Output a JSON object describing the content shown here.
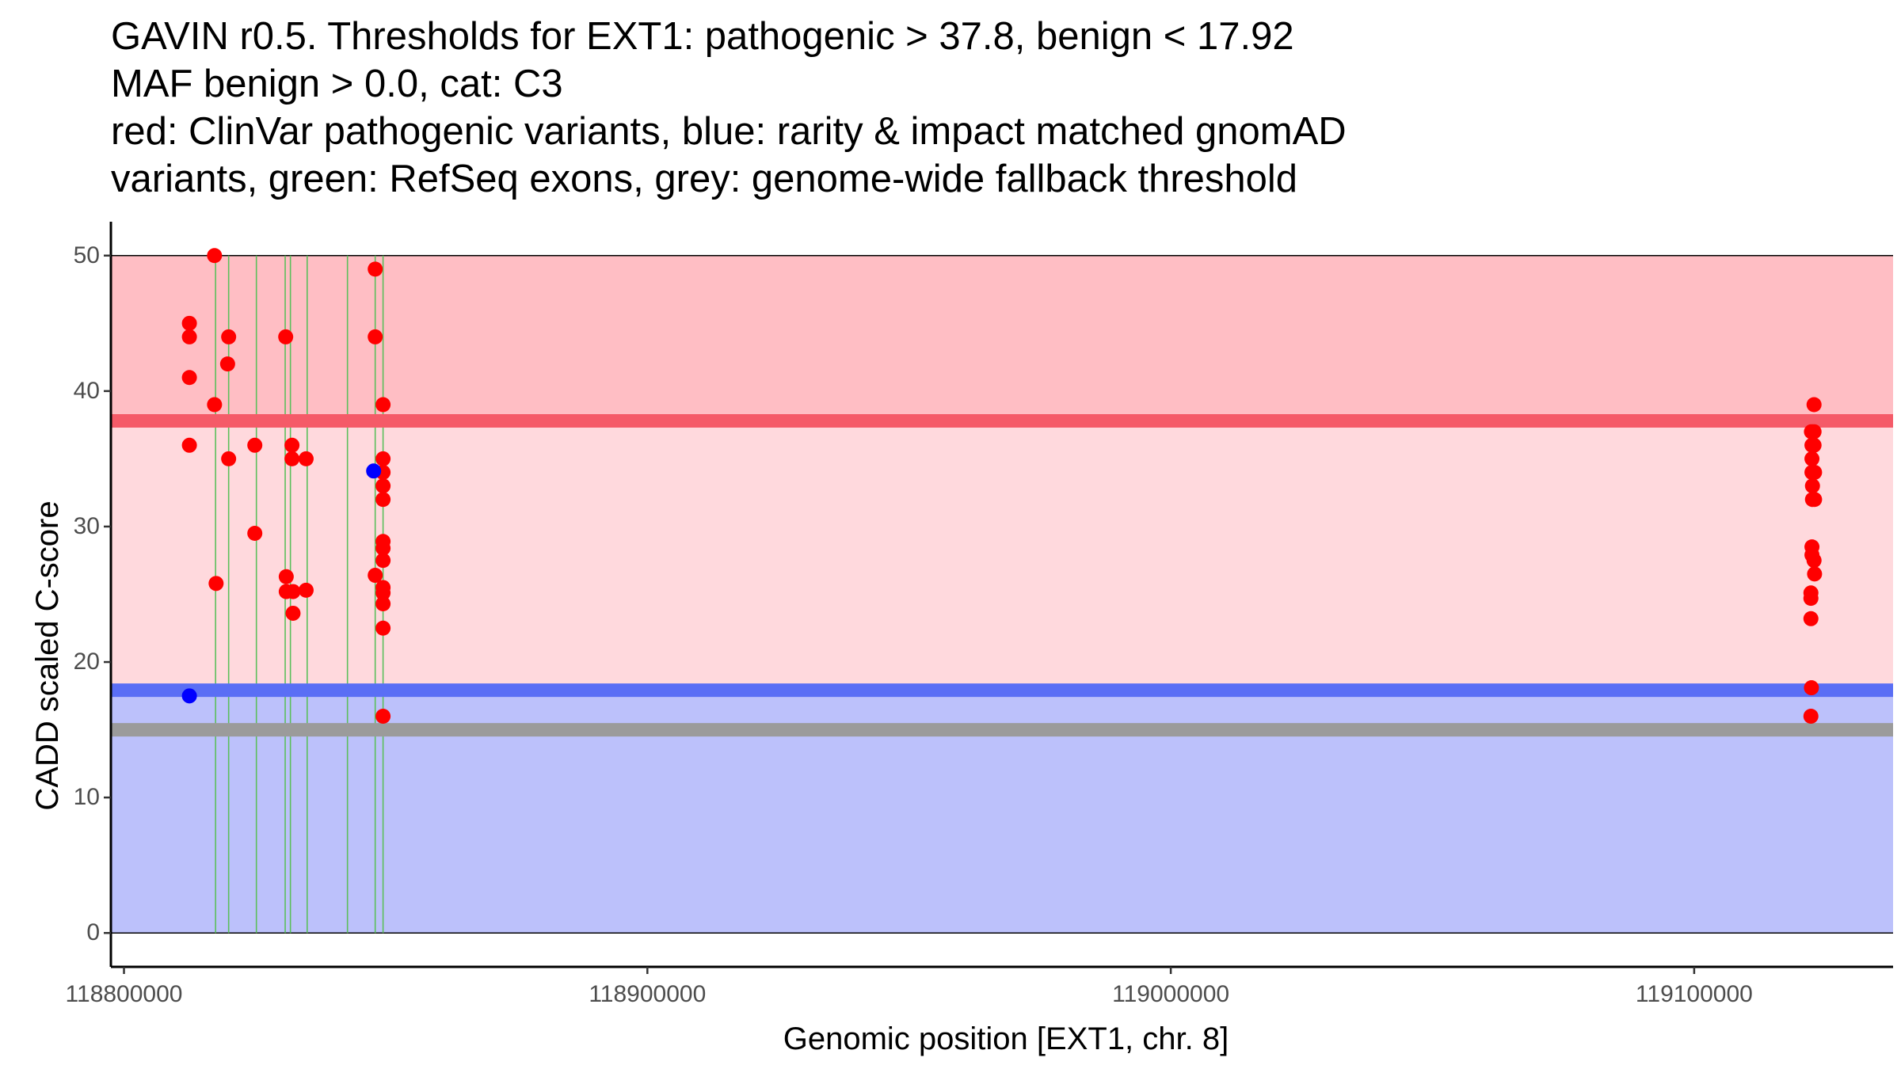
{
  "chart_data": {
    "type": "scatter",
    "title_lines": [
      "GAVIN r0.5. Thresholds for EXT1: pathogenic > 37.8, benign < 17.92",
      "MAF benign > 0.0, cat: C3",
      "red: ClinVar pathogenic variants, blue: rarity & impact matched gnomAD",
      "variants, green: RefSeq exons, grey: genome-wide fallback threshold"
    ],
    "xlabel": "Genomic position [EXT1, chr. 8]",
    "ylabel": "CADD scaled C-score",
    "xlim": [
      118797500,
      119138000
    ],
    "ylim": [
      -2.5,
      52.5
    ],
    "x_ticks": [
      {
        "value": 118800000,
        "label": "118800000"
      },
      {
        "value": 118900000,
        "label": "118900000"
      },
      {
        "value": 119000000,
        "label": "119000000"
      },
      {
        "value": 119100000,
        "label": "119100000"
      }
    ],
    "y_ticks": [
      {
        "value": 0,
        "label": "0"
      },
      {
        "value": 10,
        "label": "10"
      },
      {
        "value": 20,
        "label": "20"
      },
      {
        "value": 30,
        "label": "30"
      },
      {
        "value": 40,
        "label": "40"
      },
      {
        "value": 50,
        "label": "50"
      }
    ],
    "regions": {
      "pathogenic_top": {
        "y0": 37.8,
        "y1": 50,
        "color": "#ffbec4"
      },
      "vus_middle": {
        "y0": 17.92,
        "y1": 37.8,
        "color": "#ffd9dd"
      },
      "benign_bottom": {
        "y0": 0,
        "y1": 17.92,
        "color": "#bcc1fb"
      }
    },
    "threshold_lines": [
      {
        "name": "pathogenic",
        "y": 37.8,
        "color": "#f55a68"
      },
      {
        "name": "benign",
        "y": 17.92,
        "color": "#5a6ef5"
      },
      {
        "name": "fallback",
        "y": 15.0,
        "color": "#9b9b9b"
      }
    ],
    "exons_x": [
      118817500,
      118820000,
      118825300,
      118830800,
      118831800,
      118835000,
      118842700,
      118848000,
      118849500
    ],
    "series": [
      {
        "name": "ClinVar pathogenic",
        "color": "#ff0000",
        "points": [
          [
            118812500,
            45
          ],
          [
            118812500,
            44
          ],
          [
            118812500,
            41
          ],
          [
            118812500,
            36
          ],
          [
            118817300,
            50
          ],
          [
            118817300,
            39
          ],
          [
            118817600,
            25.8
          ],
          [
            118820000,
            44
          ],
          [
            118819800,
            42
          ],
          [
            118820000,
            35
          ],
          [
            118825000,
            36
          ],
          [
            118825000,
            29.5
          ],
          [
            118830900,
            44
          ],
          [
            118831000,
            26.3
          ],
          [
            118831000,
            25.2
          ],
          [
            118832100,
            36
          ],
          [
            118832100,
            35
          ],
          [
            118832300,
            25.2
          ],
          [
            118832300,
            23.6
          ],
          [
            118834800,
            35
          ],
          [
            118834800,
            25.3
          ],
          [
            118848000,
            49
          ],
          [
            118848000,
            44
          ],
          [
            118848000,
            26.4
          ],
          [
            118849500,
            39
          ],
          [
            118849500,
            35
          ],
          [
            118849500,
            34
          ],
          [
            118849500,
            33
          ],
          [
            118849500,
            32
          ],
          [
            118849500,
            28.9
          ],
          [
            118849500,
            28.4
          ],
          [
            118849500,
            27.5
          ],
          [
            118849500,
            25.5
          ],
          [
            118849500,
            25.1
          ],
          [
            118849500,
            24.3
          ],
          [
            118849500,
            22.5
          ],
          [
            118849500,
            16
          ],
          [
            119122900,
            39
          ],
          [
            119122400,
            37
          ],
          [
            119122900,
            37
          ],
          [
            119122500,
            36
          ],
          [
            119122900,
            36
          ],
          [
            119122500,
            35
          ],
          [
            119122500,
            34
          ],
          [
            119123000,
            34
          ],
          [
            119122600,
            33
          ],
          [
            119122600,
            32
          ],
          [
            119123000,
            32
          ],
          [
            119122500,
            28.5
          ],
          [
            119122500,
            27.9
          ],
          [
            119122900,
            27.5
          ],
          [
            119123000,
            26.5
          ],
          [
            119122300,
            25.1
          ],
          [
            119122300,
            24.7
          ],
          [
            119122300,
            23.2
          ],
          [
            119122400,
            18.1
          ],
          [
            119122300,
            16
          ]
        ]
      },
      {
        "name": "gnomAD matched",
        "color": "#0000ff",
        "points": [
          [
            118812500,
            17.5
          ],
          [
            118847700,
            34.1
          ]
        ]
      }
    ]
  }
}
